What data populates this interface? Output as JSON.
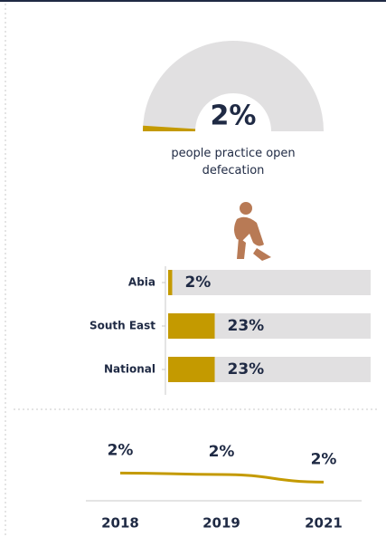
{
  "chart_data": [
    {
      "type": "gauge",
      "value": 2,
      "value_label": "2%",
      "range": [
        0,
        100
      ],
      "subtitle": "people practice open defecation",
      "color": "#c49a00",
      "track_color": "#e1e0e1"
    },
    {
      "type": "hbar",
      "categories": [
        "Abia",
        "South East",
        "National"
      ],
      "values": [
        2,
        23,
        23
      ],
      "value_labels": [
        "2%",
        "23%",
        "23%"
      ],
      "xlim": [
        0,
        100
      ],
      "color": "#c49a00",
      "track_color": "#e1e0e1"
    },
    {
      "type": "line",
      "categories": [
        "2018",
        "2019",
        "2021"
      ],
      "values": [
        2.2,
        2.1,
        1.6
      ],
      "value_labels": [
        "2%",
        "2%",
        "2%"
      ],
      "ylim": [
        0,
        3
      ],
      "color": "#c49a00"
    }
  ]
}
